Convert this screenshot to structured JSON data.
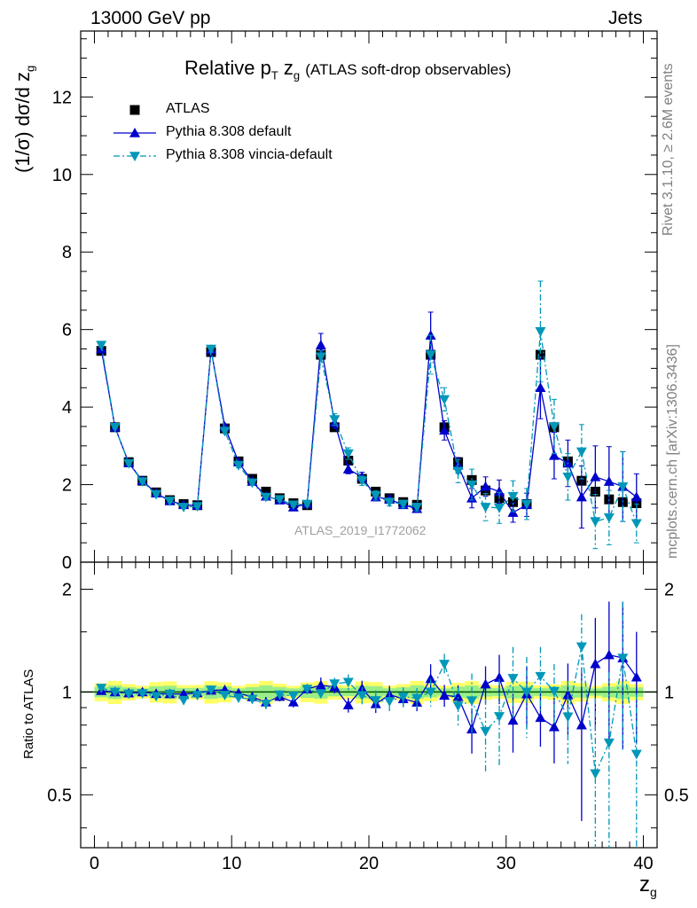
{
  "header": {
    "left": "13000 GeV pp",
    "right": "Jets"
  },
  "side_labels": {
    "top": "Rivet 3.1.10, ≥ 2.6M events",
    "bottom": "mcplots.cern.ch [arXiv:1306.3436]"
  },
  "chart_data": [
    {
      "type": "line",
      "title_main": "Relative p",
      "title_sub": "T",
      "title_var": "z",
      "title_var_sub": "g",
      "title_rest": "(ATLAS soft-drop observables)",
      "ylabel": "(1/σ) dσ/d z",
      "ylabel_sub": "g",
      "watermark": "ATLAS_2019_I1772062",
      "xlim": [
        -1,
        41
      ],
      "ylim": [
        0,
        13.7
      ],
      "yticks": [
        0,
        2,
        4,
        6,
        8,
        10,
        12
      ],
      "legend": {
        "position": "top-left",
        "entries": [
          "ATLAS",
          "Pythia 8.308 default",
          "Pythia 8.308 vincia-default"
        ]
      },
      "x": [
        0.5,
        1.5,
        2.5,
        3.5,
        4.5,
        5.5,
        6.5,
        7.5,
        8.5,
        9.5,
        10.5,
        11.5,
        12.5,
        13.5,
        14.5,
        15.5,
        16.5,
        17.5,
        18.5,
        19.5,
        20.5,
        21.5,
        22.5,
        23.5,
        24.5,
        25.5,
        26.5,
        27.5,
        28.5,
        29.5,
        30.5,
        31.5,
        32.5,
        33.5,
        34.5,
        35.5,
        36.5,
        37.5,
        38.5,
        39.5
      ],
      "series": [
        {
          "name": "ATLAS",
          "color": "#000000",
          "marker": "square",
          "values": [
            5.45,
            3.48,
            2.58,
            2.1,
            1.8,
            1.6,
            1.5,
            1.47,
            5.42,
            3.45,
            2.6,
            2.15,
            1.82,
            1.65,
            1.52,
            1.47,
            5.35,
            3.48,
            2.62,
            2.15,
            1.82,
            1.65,
            1.55,
            1.48,
            5.35,
            3.48,
            2.58,
            2.12,
            1.85,
            1.65,
            1.55,
            1.5,
            5.35,
            3.48,
            2.6,
            2.1,
            1.82,
            1.62,
            1.55,
            1.52
          ]
        },
        {
          "name": "Pythia 8.308 default",
          "color": "#0000cc",
          "marker": "triangle-up",
          "line": "solid",
          "values": [
            5.5,
            3.48,
            2.56,
            2.1,
            1.78,
            1.58,
            1.48,
            1.46,
            5.48,
            3.5,
            2.58,
            2.08,
            1.7,
            1.6,
            1.42,
            1.5,
            5.6,
            3.6,
            2.4,
            2.2,
            1.68,
            1.62,
            1.48,
            1.38,
            5.85,
            3.4,
            2.5,
            1.65,
            1.95,
            1.82,
            1.28,
            1.48,
            4.5,
            2.75,
            2.55,
            1.68,
            2.2,
            2.08,
            1.95,
            1.68
          ],
          "errors": [
            0.04,
            0.03,
            0.03,
            0.03,
            0.03,
            0.03,
            0.03,
            0.03,
            0.08,
            0.06,
            0.06,
            0.06,
            0.06,
            0.05,
            0.05,
            0.05,
            0.3,
            0.15,
            0.12,
            0.12,
            0.1,
            0.1,
            0.08,
            0.08,
            0.6,
            0.25,
            0.2,
            0.25,
            0.25,
            0.3,
            0.25,
            0.3,
            0.8,
            0.6,
            0.6,
            0.8,
            0.8,
            0.9,
            0.9,
            0.6
          ]
        },
        {
          "name": "Pythia 8.308 vincia-default",
          "color": "#0097b8",
          "marker": "triangle-down",
          "line": "dashdot",
          "values": [
            5.6,
            3.48,
            2.55,
            2.08,
            1.75,
            1.58,
            1.42,
            1.44,
            5.5,
            3.38,
            2.5,
            2.05,
            1.68,
            1.62,
            1.48,
            1.5,
            5.3,
            3.68,
            2.8,
            2.1,
            1.72,
            1.55,
            1.5,
            1.42,
            5.35,
            4.2,
            2.35,
            2.0,
            1.42,
            1.4,
            1.7,
            1.5,
            5.95,
            3.5,
            2.2,
            2.85,
            1.05,
            1.15,
            1.95,
            1.0
          ],
          "errors": [
            0.04,
            0.03,
            0.03,
            0.03,
            0.03,
            0.03,
            0.03,
            0.03,
            0.08,
            0.06,
            0.06,
            0.06,
            0.06,
            0.05,
            0.05,
            0.05,
            0.15,
            0.15,
            0.15,
            0.12,
            0.12,
            0.1,
            0.1,
            0.1,
            0.5,
            0.3,
            0.3,
            0.4,
            0.35,
            0.4,
            0.4,
            0.4,
            1.3,
            0.7,
            0.6,
            0.7,
            0.7,
            0.7,
            0.9,
            0.5
          ]
        }
      ]
    },
    {
      "type": "line",
      "ylabel": "Ratio to ATLAS",
      "xlabel": "z",
      "xlabel_sub": "g",
      "xlim": [
        -1,
        41
      ],
      "ylim": [
        0.35,
        2.4
      ],
      "xticks": [
        0,
        10,
        20,
        30,
        40
      ],
      "yticks": [
        0.5,
        1,
        2
      ],
      "yscale": "log",
      "reference_band": [
        {
          "fill": "#ffff66",
          "half_width": 0.06
        },
        {
          "fill": "#99ee88",
          "half_width": 0.035
        }
      ]
    }
  ]
}
